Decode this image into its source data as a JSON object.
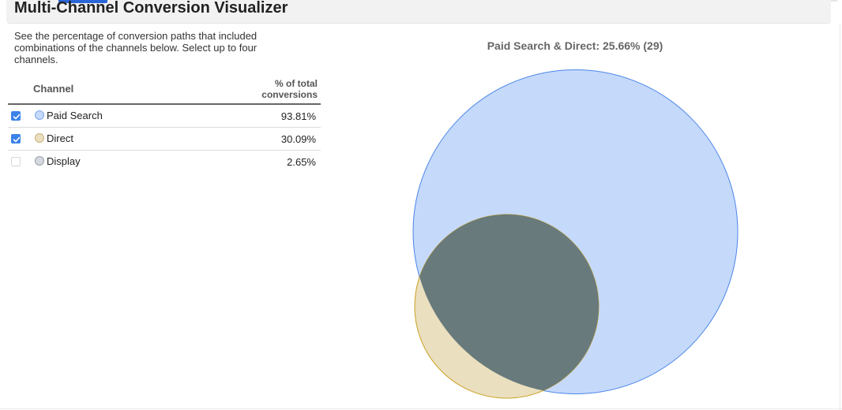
{
  "header": {
    "title": "Multi-Channel Conversion Visualizer"
  },
  "description": "See the percentage of conversion paths that included combinations of the channels below. Select up to four channels.",
  "table": {
    "col_channel": "Channel",
    "col_pct": "% of total conversions",
    "rows": [
      {
        "label": "Paid Search",
        "value": "93.81%",
        "checked": true,
        "color": "#c5d9fb",
        "border": "#7fa6e8"
      },
      {
        "label": "Direct",
        "value": "30.09%",
        "checked": true,
        "color": "#eadfbe",
        "border": "#c9b27a"
      },
      {
        "label": "Display",
        "value": "2.65%",
        "checked": false,
        "color": "#d6d9e0",
        "border": "#9aa0ab"
      }
    ]
  },
  "venn": {
    "title": "Paid Search & Direct: 25.66% (29)",
    "colors": {
      "paid_search_fill": "#c5d9fb",
      "paid_search_stroke": "#4a86e8",
      "direct_fill": "#eadfbe",
      "direct_stroke": "#c9a227",
      "overlap_fill": "#687a7b"
    }
  }
}
